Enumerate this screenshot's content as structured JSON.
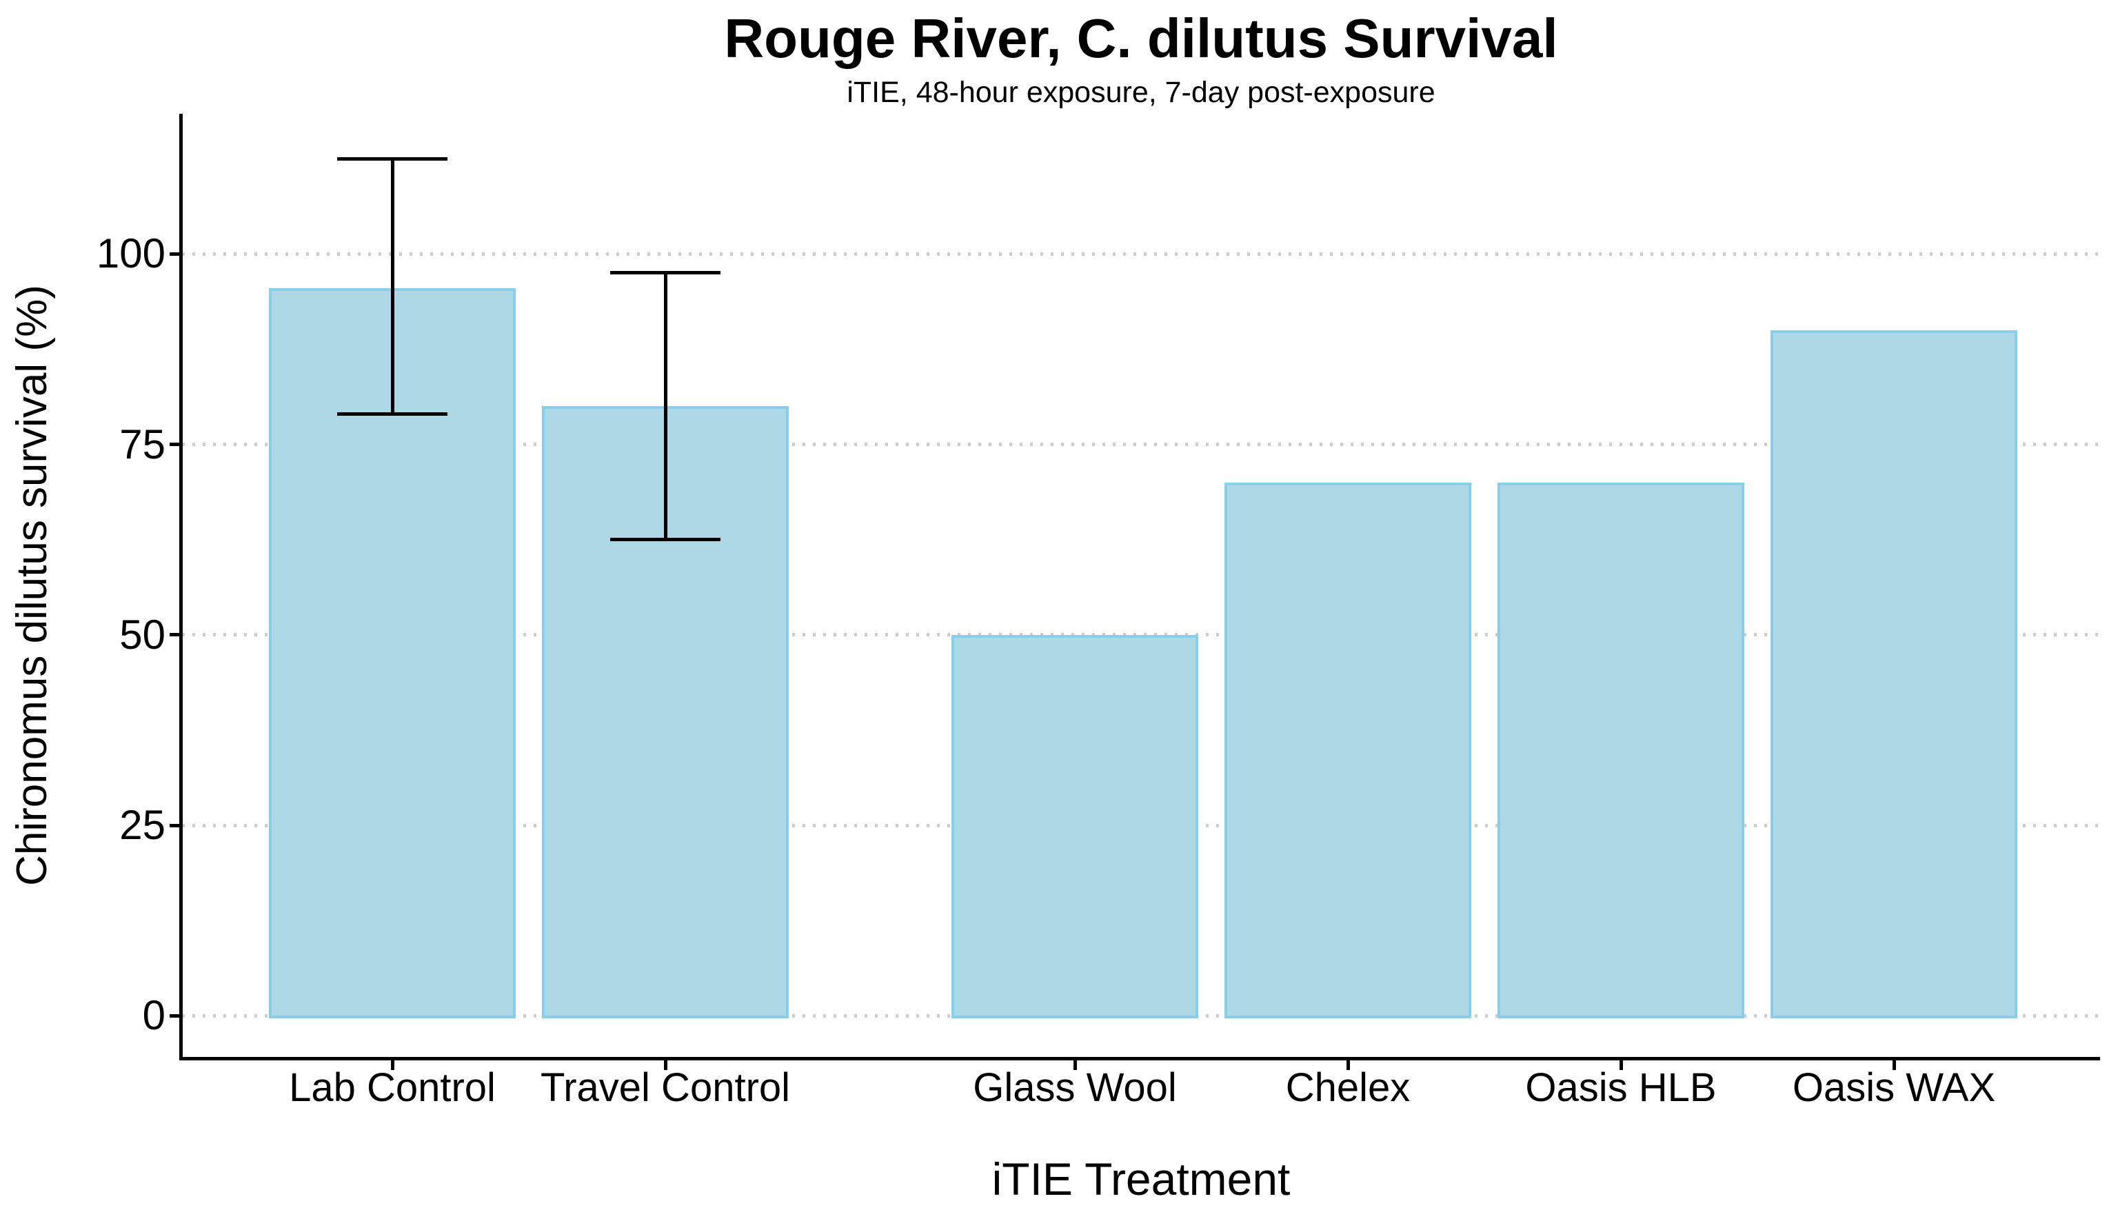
{
  "page": {
    "background": "#ffffff"
  },
  "chart_data": {
    "type": "bar",
    "title": "Rouge River, C. dilutus Survival",
    "subtitle": "iTIE, 48-hour exposure, 7-day post-exposure",
    "xlabel": "iTIE Treatment",
    "ylabel": "Chironomus dilutus survival (%)",
    "categories": [
      "Lab Control",
      "Travel Control",
      "Glass Wool",
      "Chelex",
      "Oasis HLB",
      "Oasis WAX"
    ],
    "values": [
      95.5,
      80,
      50,
      70,
      70,
      90
    ],
    "error_low": [
      79,
      62.5,
      null,
      null,
      null,
      null
    ],
    "error_high": [
      112.5,
      97.5,
      null,
      null,
      null,
      null
    ],
    "x_positions": [
      1,
      2,
      3.5,
      4.5,
      5.5,
      6.5
    ],
    "yticks": [
      0,
      25,
      50,
      75,
      100
    ],
    "ylim": [
      -5.4,
      118.4
    ],
    "grid": "horizontal-dotted",
    "legend": "none",
    "colors": {
      "bar_fill": "#ADD8E6",
      "bar_stroke": "#87CEEB",
      "gridline": "#cdcdcd",
      "axis": "#000000",
      "error_bar": "#000000",
      "text": "#000000"
    }
  }
}
